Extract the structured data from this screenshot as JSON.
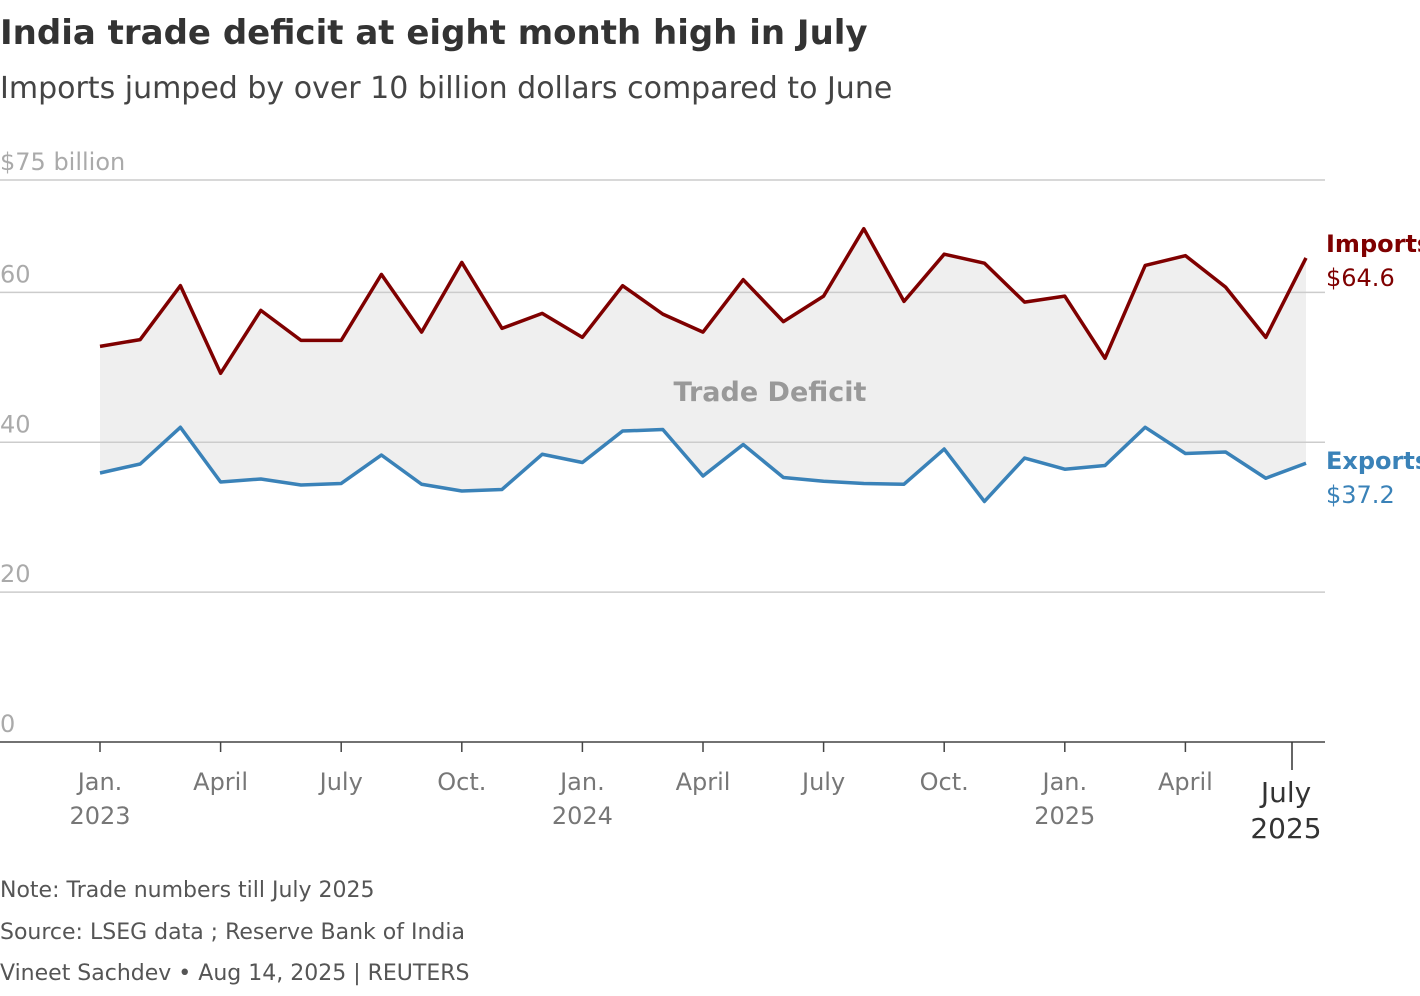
{
  "chart_data": {
    "type": "line",
    "title": "India trade deficit at eight month high in July",
    "subtitle": "Imports jumped by over 10 billion dollars compared to June",
    "annotation": "Trade Deficit",
    "categories": [
      "Jan. 2023",
      null,
      null,
      "April",
      null,
      null,
      "July",
      null,
      null,
      "Oct.",
      null,
      null,
      "Jan. 2024",
      null,
      null,
      "April",
      null,
      null,
      "July",
      null,
      null,
      "Oct.",
      null,
      null,
      "Jan. 2025",
      null,
      null,
      "April",
      null,
      null,
      "July 2025"
    ],
    "series": [
      {
        "name": "Imports",
        "color": "#7f0000",
        "values": [
          52.8,
          53.7,
          60.9,
          49.2,
          57.6,
          53.6,
          53.6,
          62.4,
          54.7,
          64.0,
          55.2,
          57.2,
          54.0,
          60.9,
          57.1,
          54.7,
          61.7,
          56.1,
          59.5,
          68.5,
          58.8,
          65.1,
          63.9,
          58.7,
          59.5,
          51.2,
          63.6,
          64.9,
          60.7,
          54.0,
          64.6
        ],
        "value_labels": [
          null,
          null,
          null,
          null,
          null,
          null,
          null,
          null,
          null,
          null,
          null,
          null,
          null,
          null,
          null,
          null,
          null,
          null,
          null,
          null,
          null,
          null,
          null,
          null,
          null,
          null,
          null,
          null,
          null,
          null,
          "$64.6"
        ]
      },
      {
        "name": "Exports",
        "color": "#3a82b8",
        "values": [
          35.9,
          37.1,
          42.0,
          34.7,
          35.1,
          34.3,
          34.5,
          38.3,
          34.4,
          33.5,
          33.7,
          38.4,
          37.3,
          41.5,
          41.7,
          35.5,
          39.7,
          35.3,
          34.8,
          34.5,
          34.4,
          39.1,
          32.1,
          37.9,
          36.4,
          36.9,
          42.0,
          38.5,
          38.7,
          35.2,
          37.2
        ],
        "value_labels": [
          null,
          null,
          null,
          null,
          null,
          null,
          null,
          null,
          null,
          null,
          null,
          null,
          null,
          null,
          null,
          null,
          null,
          null,
          null,
          null,
          null,
          null,
          null,
          null,
          null,
          null,
          null,
          null,
          null,
          null,
          "$37.2"
        ]
      }
    ],
    "ylim": [
      0,
      75
    ],
    "yticks": [
      0,
      20,
      40,
      60,
      {
        "value": 75,
        "label": "$75 billion"
      }
    ],
    "grid": true,
    "area_color": "#efefef",
    "notes": [
      "Note: Trade numbers till July 2025",
      "Source: LSEG data ; Reserve Bank of India",
      "Vineet Sachdev • Aug 14, 2025 | REUTERS"
    ]
  }
}
